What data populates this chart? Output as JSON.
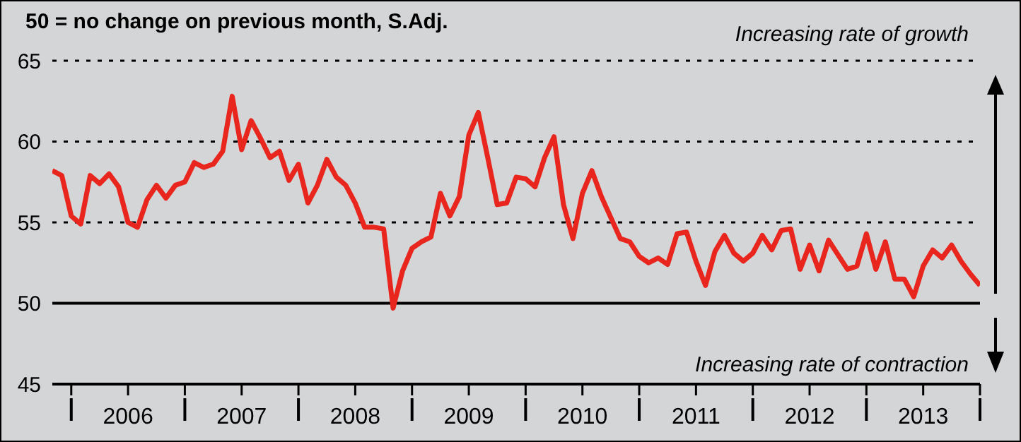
{
  "chart_data": {
    "type": "line",
    "title": "50 = no change on previous month, S.Adj.",
    "annotations": [
      "Increasing rate of growth",
      "Increasing rate of contraction"
    ],
    "x": [
      "2005-11",
      "2005-12",
      "2006-01",
      "2006-02",
      "2006-03",
      "2006-04",
      "2006-05",
      "2006-06",
      "2006-07",
      "2006-08",
      "2006-09",
      "2006-10",
      "2006-11",
      "2006-12",
      "2007-01",
      "2007-02",
      "2007-03",
      "2007-04",
      "2007-05",
      "2007-06",
      "2007-07",
      "2007-08",
      "2007-09",
      "2007-10",
      "2007-11",
      "2007-12",
      "2008-01",
      "2008-02",
      "2008-03",
      "2008-04",
      "2008-05",
      "2008-06",
      "2008-07",
      "2008-08",
      "2008-09",
      "2008-10",
      "2008-11",
      "2008-12",
      "2009-01",
      "2009-02",
      "2009-03",
      "2009-04",
      "2009-05",
      "2009-06",
      "2009-07",
      "2009-08",
      "2009-09",
      "2009-10",
      "2009-11",
      "2009-12",
      "2010-01",
      "2010-02",
      "2010-03",
      "2010-04",
      "2010-05",
      "2010-06",
      "2010-07",
      "2010-08",
      "2010-09",
      "2010-10",
      "2010-11",
      "2010-12",
      "2011-01",
      "2011-02",
      "2011-03",
      "2011-04",
      "2011-05",
      "2011-06",
      "2011-07",
      "2011-08",
      "2011-09",
      "2011-10",
      "2011-11",
      "2011-12",
      "2012-01",
      "2012-02",
      "2012-03",
      "2012-04",
      "2012-05",
      "2012-06",
      "2012-07",
      "2012-08",
      "2012-09",
      "2012-10",
      "2012-11",
      "2012-12",
      "2013-01",
      "2013-02",
      "2013-03",
      "2013-04",
      "2013-05",
      "2013-06",
      "2013-07",
      "2013-08",
      "2013-09",
      "2013-10",
      "2013-11",
      "2013-12",
      "2014-01"
    ],
    "series": [
      {
        "color": "#e8261e",
        "values": [
          58.2,
          57.9,
          55.4,
          54.9,
          57.9,
          57.4,
          58.0,
          57.2,
          55.0,
          54.7,
          56.4,
          57.3,
          56.5,
          57.3,
          57.5,
          58.7,
          58.4,
          58.6,
          59.4,
          62.8,
          59.5,
          61.3,
          60.2,
          59.0,
          59.4,
          57.6,
          58.6,
          56.2,
          57.3,
          58.9,
          57.8,
          57.3,
          56.2,
          54.7,
          54.7,
          54.6,
          49.7,
          52.0,
          53.4,
          53.8,
          54.1,
          56.8,
          55.4,
          56.6,
          60.4,
          61.8,
          59.0,
          56.1,
          56.2,
          57.8,
          57.7,
          57.2,
          59.0,
          60.3,
          56.1,
          54.0,
          56.8,
          58.2,
          56.6,
          55.3,
          54.0,
          53.8,
          52.9,
          52.5,
          52.8,
          52.4,
          54.3,
          54.4,
          52.6,
          51.1,
          53.2,
          54.2,
          53.1,
          52.6,
          53.1,
          54.2,
          53.3,
          54.5,
          54.6,
          52.1,
          53.6,
          52.0,
          53.9,
          53.0,
          52.1,
          52.3,
          54.3,
          52.1,
          53.8,
          51.5,
          51.5,
          50.4,
          52.3,
          53.3,
          52.8,
          53.6,
          52.6,
          51.8,
          51.1
        ]
      }
    ],
    "xlim": [
      "2005-11",
      "2014-01"
    ],
    "xticks": [
      {
        "value": "2006-01",
        "label": null
      },
      {
        "value": "2006-07",
        "label": "2006"
      },
      {
        "value": "2007-01",
        "label": null
      },
      {
        "value": "2007-07",
        "label": "2007"
      },
      {
        "value": "2008-01",
        "label": null
      },
      {
        "value": "2008-07",
        "label": "2008"
      },
      {
        "value": "2009-01",
        "label": null
      },
      {
        "value": "2009-07",
        "label": "2009"
      },
      {
        "value": "2010-01",
        "label": null
      },
      {
        "value": "2010-07",
        "label": "2010"
      },
      {
        "value": "2011-01",
        "label": null
      },
      {
        "value": "2011-07",
        "label": "2011"
      },
      {
        "value": "2012-01",
        "label": null
      },
      {
        "value": "2012-07",
        "label": "2012"
      },
      {
        "value": "2013-01",
        "label": null
      },
      {
        "value": "2013-07",
        "label": "2013"
      },
      {
        "value": "2014-01",
        "label": null
      }
    ],
    "ylim": [
      45,
      65
    ],
    "yticks": [
      45,
      50,
      55,
      60,
      65
    ],
    "grid": "y",
    "line_style": "solid",
    "marker": "none",
    "ref_lines": [
      {
        "axis": "y",
        "value": 50,
        "color": "#000000",
        "line_style": "solid"
      }
    ]
  }
}
